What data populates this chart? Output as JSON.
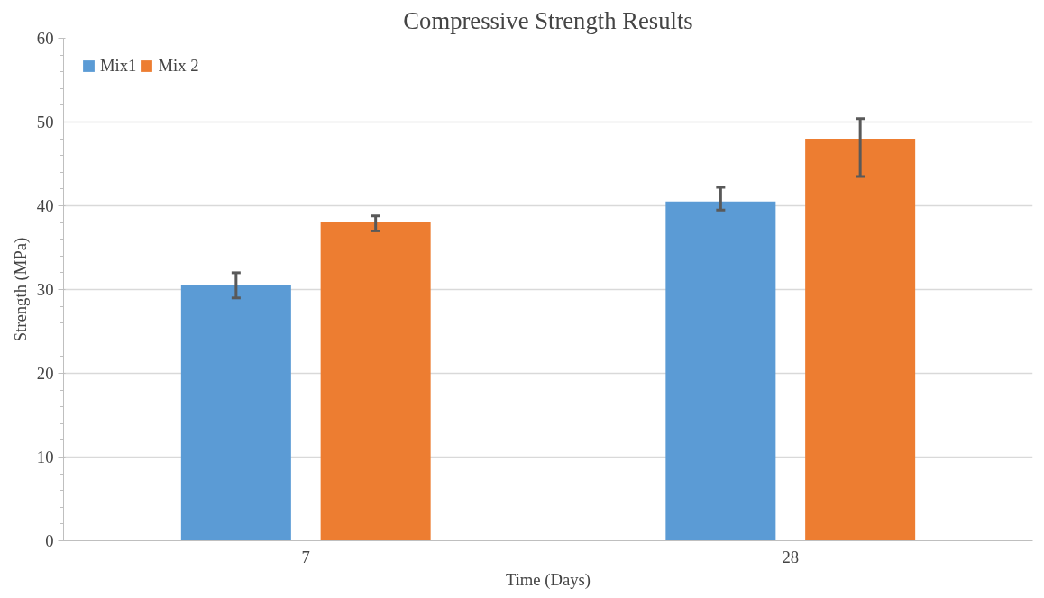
{
  "chart_data": {
    "type": "bar",
    "title": "Compressive Strength Results",
    "xlabel": "Time (Days)",
    "ylabel": "Strength (MPa)",
    "categories": [
      "7",
      "28"
    ],
    "series": [
      {
        "name": "Mix1",
        "color": "#5b9bd5",
        "values": [
          30.5,
          40.5
        ],
        "errors": [
          [
            29.0,
            32.0
          ],
          [
            39.5,
            42.2
          ]
        ]
      },
      {
        "name": "Mix 2",
        "color": "#ed7d31",
        "values": [
          38.1,
          48.0
        ],
        "errors": [
          [
            37.0,
            38.8
          ],
          [
            43.5,
            50.4
          ]
        ]
      }
    ],
    "ylim": [
      0,
      60
    ],
    "yticks": [
      0,
      10,
      20,
      30,
      40,
      50,
      60
    ],
    "grid": "y",
    "legend": "top left"
  }
}
